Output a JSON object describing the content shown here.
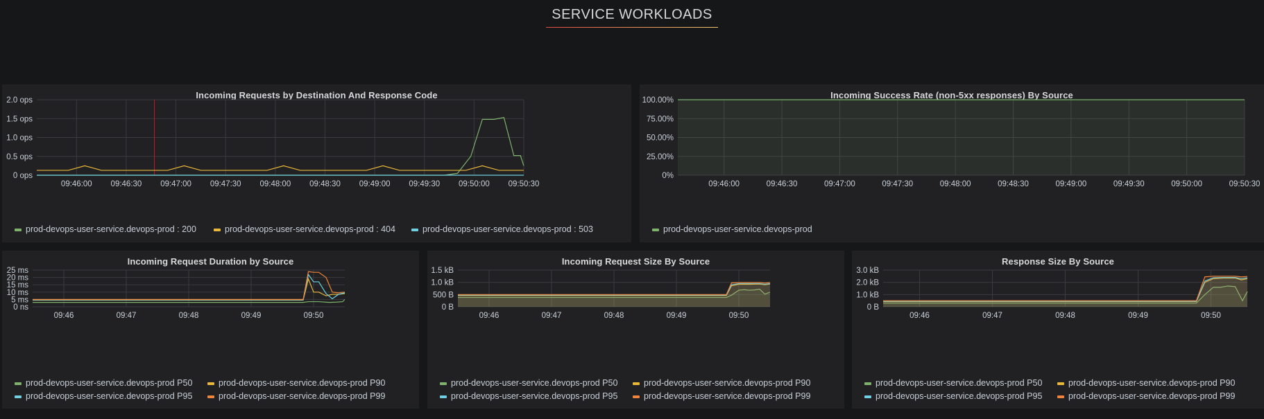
{
  "row_title": "SERVICE WORKLOADS",
  "colors": {
    "s200": "#7eb26d",
    "s404": "#eab839",
    "s503": "#6ed0e0",
    "p99": "#ef843c",
    "grid": "#3a3b3f",
    "axis": "#c7d0d9",
    "fill": "#7eb26d",
    "annotation": "#c4162a"
  },
  "panels": {
    "requests": {
      "title": "Incoming Requests by Destination And Response Code",
      "legend": [
        {
          "label": "prod-devops-user-service.devops-prod : 200",
          "color": "#7eb26d"
        },
        {
          "label": "prod-devops-user-service.devops-prod : 404",
          "color": "#eab839"
        },
        {
          "label": "prod-devops-user-service.devops-prod : 503",
          "color": "#6ed0e0"
        }
      ]
    },
    "success": {
      "title": "Incoming Success Rate (non-5xx responses) By Source",
      "legend": [
        {
          "label": "prod-devops-user-service.devops-prod",
          "color": "#7eb26d"
        }
      ]
    },
    "duration": {
      "title": "Incoming Request Duration by Source",
      "legend": [
        {
          "label": "prod-devops-user-service.devops-prod P50",
          "color": "#7eb26d"
        },
        {
          "label": "prod-devops-user-service.devops-prod P90",
          "color": "#eab839"
        },
        {
          "label": "prod-devops-user-service.devops-prod P95",
          "color": "#6ed0e0"
        },
        {
          "label": "prod-devops-user-service.devops-prod P99",
          "color": "#ef843c"
        }
      ]
    },
    "reqsize": {
      "title": "Incoming Request Size By Source",
      "legend": [
        {
          "label": "prod-devops-user-service.devops-prod P50",
          "color": "#7eb26d"
        },
        {
          "label": "prod-devops-user-service.devops-prod P90",
          "color": "#eab839"
        },
        {
          "label": "prod-devops-user-service.devops-prod P95",
          "color": "#6ed0e0"
        },
        {
          "label": "prod-devops-user-service.devops-prod P99",
          "color": "#ef843c"
        }
      ]
    },
    "respsize": {
      "title": "Response Size By Source",
      "legend": [
        {
          "label": "prod-devops-user-service.devops-prod P50",
          "color": "#7eb26d"
        },
        {
          "label": "prod-devops-user-service.devops-prod P90",
          "color": "#eab839"
        },
        {
          "label": "prod-devops-user-service.devops-prod P95",
          "color": "#6ed0e0"
        },
        {
          "label": "prod-devops-user-service.devops-prod P99",
          "color": "#ef843c"
        }
      ]
    }
  },
  "chart_data": [
    {
      "id": "requests",
      "type": "line",
      "title": "Incoming Requests by Destination And Response Code",
      "x_ticks": [
        "09:46:00",
        "09:46:30",
        "09:47:00",
        "09:47:30",
        "09:48:00",
        "09:48:30",
        "09:49:00",
        "09:49:30",
        "09:50:00",
        "09:50:30"
      ],
      "y_ticks": [
        "0 ops",
        "0.5 ops",
        "1.0 ops",
        "1.5 ops",
        "2.0 ops"
      ],
      "x_range": [
        "09:45:36",
        "09:50:30"
      ],
      "ylim": [
        0,
        2
      ],
      "annotation_time": "09:46:47",
      "series": [
        {
          "name": "prod-devops-user-service.devops-prod : 200",
          "color": "#7eb26d",
          "x": [
            "09:45:36",
            "09:49:42",
            "09:49:50",
            "09:49:58",
            "09:50:05",
            "09:50:12",
            "09:50:18",
            "09:50:24",
            "09:50:28",
            "09:50:30"
          ],
          "y": [
            0,
            0,
            0.05,
            0.5,
            1.48,
            1.48,
            1.53,
            0.52,
            0.52,
            0.25
          ]
        },
        {
          "name": "prod-devops-user-service.devops-prod : 404",
          "color": "#eab839",
          "x": [
            "09:45:36",
            "09:45:55",
            "09:46:05",
            "09:46:15",
            "09:46:55",
            "09:47:05",
            "09:47:15",
            "09:47:55",
            "09:48:05",
            "09:48:15",
            "09:48:55",
            "09:49:05",
            "09:49:15",
            "09:49:55",
            "09:50:05",
            "09:50:15",
            "09:50:30"
          ],
          "y": [
            0.13,
            0.13,
            0.25,
            0.13,
            0.13,
            0.25,
            0.13,
            0.13,
            0.25,
            0.13,
            0.13,
            0.25,
            0.13,
            0.13,
            0.25,
            0.13,
            0.13
          ]
        },
        {
          "name": "prod-devops-user-service.devops-prod : 503",
          "color": "#6ed0e0",
          "x": [
            "09:45:36",
            "09:50:30"
          ],
          "y": [
            0,
            0
          ]
        }
      ]
    },
    {
      "id": "success",
      "type": "area",
      "title": "Incoming Success Rate (non-5xx responses) By Source",
      "x_ticks": [
        "09:46:00",
        "09:46:30",
        "09:47:00",
        "09:47:30",
        "09:48:00",
        "09:48:30",
        "09:49:00",
        "09:49:30",
        "09:50:00",
        "09:50:30"
      ],
      "y_ticks": [
        "0%",
        "25.00%",
        "50.00%",
        "75.00%",
        "100.00%"
      ],
      "x_range": [
        "09:45:36",
        "09:50:30"
      ],
      "ylim": [
        0,
        100
      ],
      "series": [
        {
          "name": "prod-devops-user-service.devops-prod",
          "color": "#7eb26d",
          "x": [
            "09:45:36",
            "09:50:30"
          ],
          "y": [
            100,
            100
          ]
        }
      ]
    },
    {
      "id": "duration",
      "type": "line",
      "title": "Incoming Request Duration by Source",
      "x_ticks": [
        "09:46",
        "09:47",
        "09:48",
        "09:49",
        "09:50"
      ],
      "y_ticks": [
        "0 ns",
        "5 ms",
        "10 ms",
        "15 ms",
        "20 ms",
        "25 ms"
      ],
      "x_range": [
        "09:45:30",
        "09:50:30"
      ],
      "ylim": [
        0,
        25
      ],
      "series": [
        {
          "name": "prod-devops-user-service.devops-prod P50",
          "color": "#7eb26d",
          "x": [
            "09:45:30",
            "09:49:50",
            "09:49:55",
            "09:50:05",
            "09:50:15",
            "09:50:22",
            "09:50:28",
            "09:50:30"
          ],
          "y": [
            3,
            3,
            3.5,
            3.5,
            3,
            3.2,
            3.5,
            5
          ]
        },
        {
          "name": "prod-devops-user-service.devops-prod P90",
          "color": "#eab839",
          "x": [
            "09:45:30",
            "09:49:50",
            "09:49:55",
            "09:50:00",
            "09:50:05",
            "09:50:12",
            "09:50:18",
            "09:50:24",
            "09:50:30"
          ],
          "y": [
            4.5,
            4.5,
            19,
            10,
            10,
            7.5,
            8.5,
            8.5,
            9
          ]
        },
        {
          "name": "prod-devops-user-service.devops-prod P95",
          "color": "#6ed0e0",
          "x": [
            "09:45:30",
            "09:49:50",
            "09:49:55",
            "09:50:00",
            "09:50:05",
            "09:50:12",
            "09:50:18",
            "09:50:24",
            "09:50:30"
          ],
          "y": [
            4.7,
            4.7,
            22,
            17,
            17,
            9,
            5.5,
            8.5,
            9.5
          ]
        },
        {
          "name": "prod-devops-user-service.devops-prod P99",
          "color": "#ef843c",
          "x": [
            "09:45:30",
            "09:49:50",
            "09:49:55",
            "09:50:00",
            "09:50:05",
            "09:50:12",
            "09:50:18",
            "09:50:24",
            "09:50:30"
          ],
          "y": [
            5,
            5,
            24,
            23.5,
            23.5,
            20,
            10,
            9.5,
            10
          ]
        }
      ]
    },
    {
      "id": "reqsize",
      "type": "area",
      "title": "Incoming Request Size By Source",
      "x_ticks": [
        "09:46",
        "09:47",
        "09:48",
        "09:49",
        "09:50"
      ],
      "y_ticks": [
        "0 B",
        "500 B",
        "1.0 kB",
        "1.5 kB"
      ],
      "x_range": [
        "09:45:30",
        "09:50:30"
      ],
      "ylim": [
        0,
        1500
      ],
      "series": [
        {
          "name": "prod-devops-user-service.devops-prod P50",
          "color": "#7eb26d",
          "x": [
            "09:45:30",
            "09:49:48",
            "09:49:53",
            "09:50:00",
            "09:50:05",
            "09:50:10",
            "09:50:15",
            "09:50:20",
            "09:50:25",
            "09:50:30"
          ],
          "y": [
            380,
            380,
            480,
            680,
            700,
            680,
            690,
            720,
            520,
            600
          ]
        },
        {
          "name": "prod-devops-user-service.devops-prod P90",
          "color": "#eab839",
          "x": [
            "09:45:30",
            "09:49:48",
            "09:49:53",
            "09:50:00",
            "09:50:10",
            "09:50:20",
            "09:50:25",
            "09:50:30"
          ],
          "y": [
            460,
            460,
            860,
            920,
            920,
            930,
            900,
            930
          ]
        },
        {
          "name": "prod-devops-user-service.devops-prod P95",
          "color": "#6ed0e0",
          "x": [
            "09:45:30",
            "09:49:48",
            "09:49:53",
            "09:50:00",
            "09:50:10",
            "09:50:20",
            "09:50:25",
            "09:50:30"
          ],
          "y": [
            480,
            480,
            900,
            950,
            950,
            950,
            920,
            950
          ]
        },
        {
          "name": "prod-devops-user-service.devops-prod P99",
          "color": "#ef843c",
          "x": [
            "09:45:30",
            "09:49:48",
            "09:49:53",
            "09:50:00",
            "09:50:10",
            "09:50:20",
            "09:50:25",
            "09:50:30"
          ],
          "y": [
            500,
            500,
            980,
            990,
            990,
            990,
            970,
            990
          ]
        }
      ]
    },
    {
      "id": "respsize",
      "type": "area",
      "title": "Response Size By Source",
      "x_ticks": [
        "09:46",
        "09:47",
        "09:48",
        "09:49",
        "09:50"
      ],
      "y_ticks": [
        "0 B",
        "1.0 kB",
        "2.0 kB",
        "3.0 kB"
      ],
      "x_range": [
        "09:45:30",
        "09:50:30"
      ],
      "ylim": [
        0,
        3000
      ],
      "series": [
        {
          "name": "prod-devops-user-service.devops-prod P50",
          "color": "#7eb26d",
          "x": [
            "09:45:30",
            "09:49:48",
            "09:49:55",
            "09:50:02",
            "09:50:08",
            "09:50:14",
            "09:50:20",
            "09:50:26",
            "09:50:30"
          ],
          "y": [
            300,
            300,
            1000,
            1600,
            1600,
            1700,
            1650,
            500,
            1250
          ]
        },
        {
          "name": "prod-devops-user-service.devops-prod P90",
          "color": "#eab839",
          "x": [
            "09:45:30",
            "09:49:48",
            "09:49:55",
            "09:50:02",
            "09:50:10",
            "09:50:20",
            "09:50:25",
            "09:50:30"
          ],
          "y": [
            420,
            420,
            2000,
            2300,
            2350,
            2350,
            2200,
            2300
          ]
        },
        {
          "name": "prod-devops-user-service.devops-prod P95",
          "color": "#6ed0e0",
          "x": [
            "09:45:30",
            "09:49:48",
            "09:49:55",
            "09:50:02",
            "09:50:10",
            "09:50:20",
            "09:50:25",
            "09:50:30"
          ],
          "y": [
            450,
            450,
            2100,
            2380,
            2400,
            2400,
            2300,
            2380
          ]
        },
        {
          "name": "prod-devops-user-service.devops-prod P99",
          "color": "#ef843c",
          "x": [
            "09:45:30",
            "09:49:48",
            "09:49:55",
            "09:50:02",
            "09:50:10",
            "09:50:20",
            "09:50:25",
            "09:50:30"
          ],
          "y": [
            500,
            500,
            2450,
            2500,
            2500,
            2500,
            2450,
            2480
          ]
        }
      ]
    }
  ]
}
